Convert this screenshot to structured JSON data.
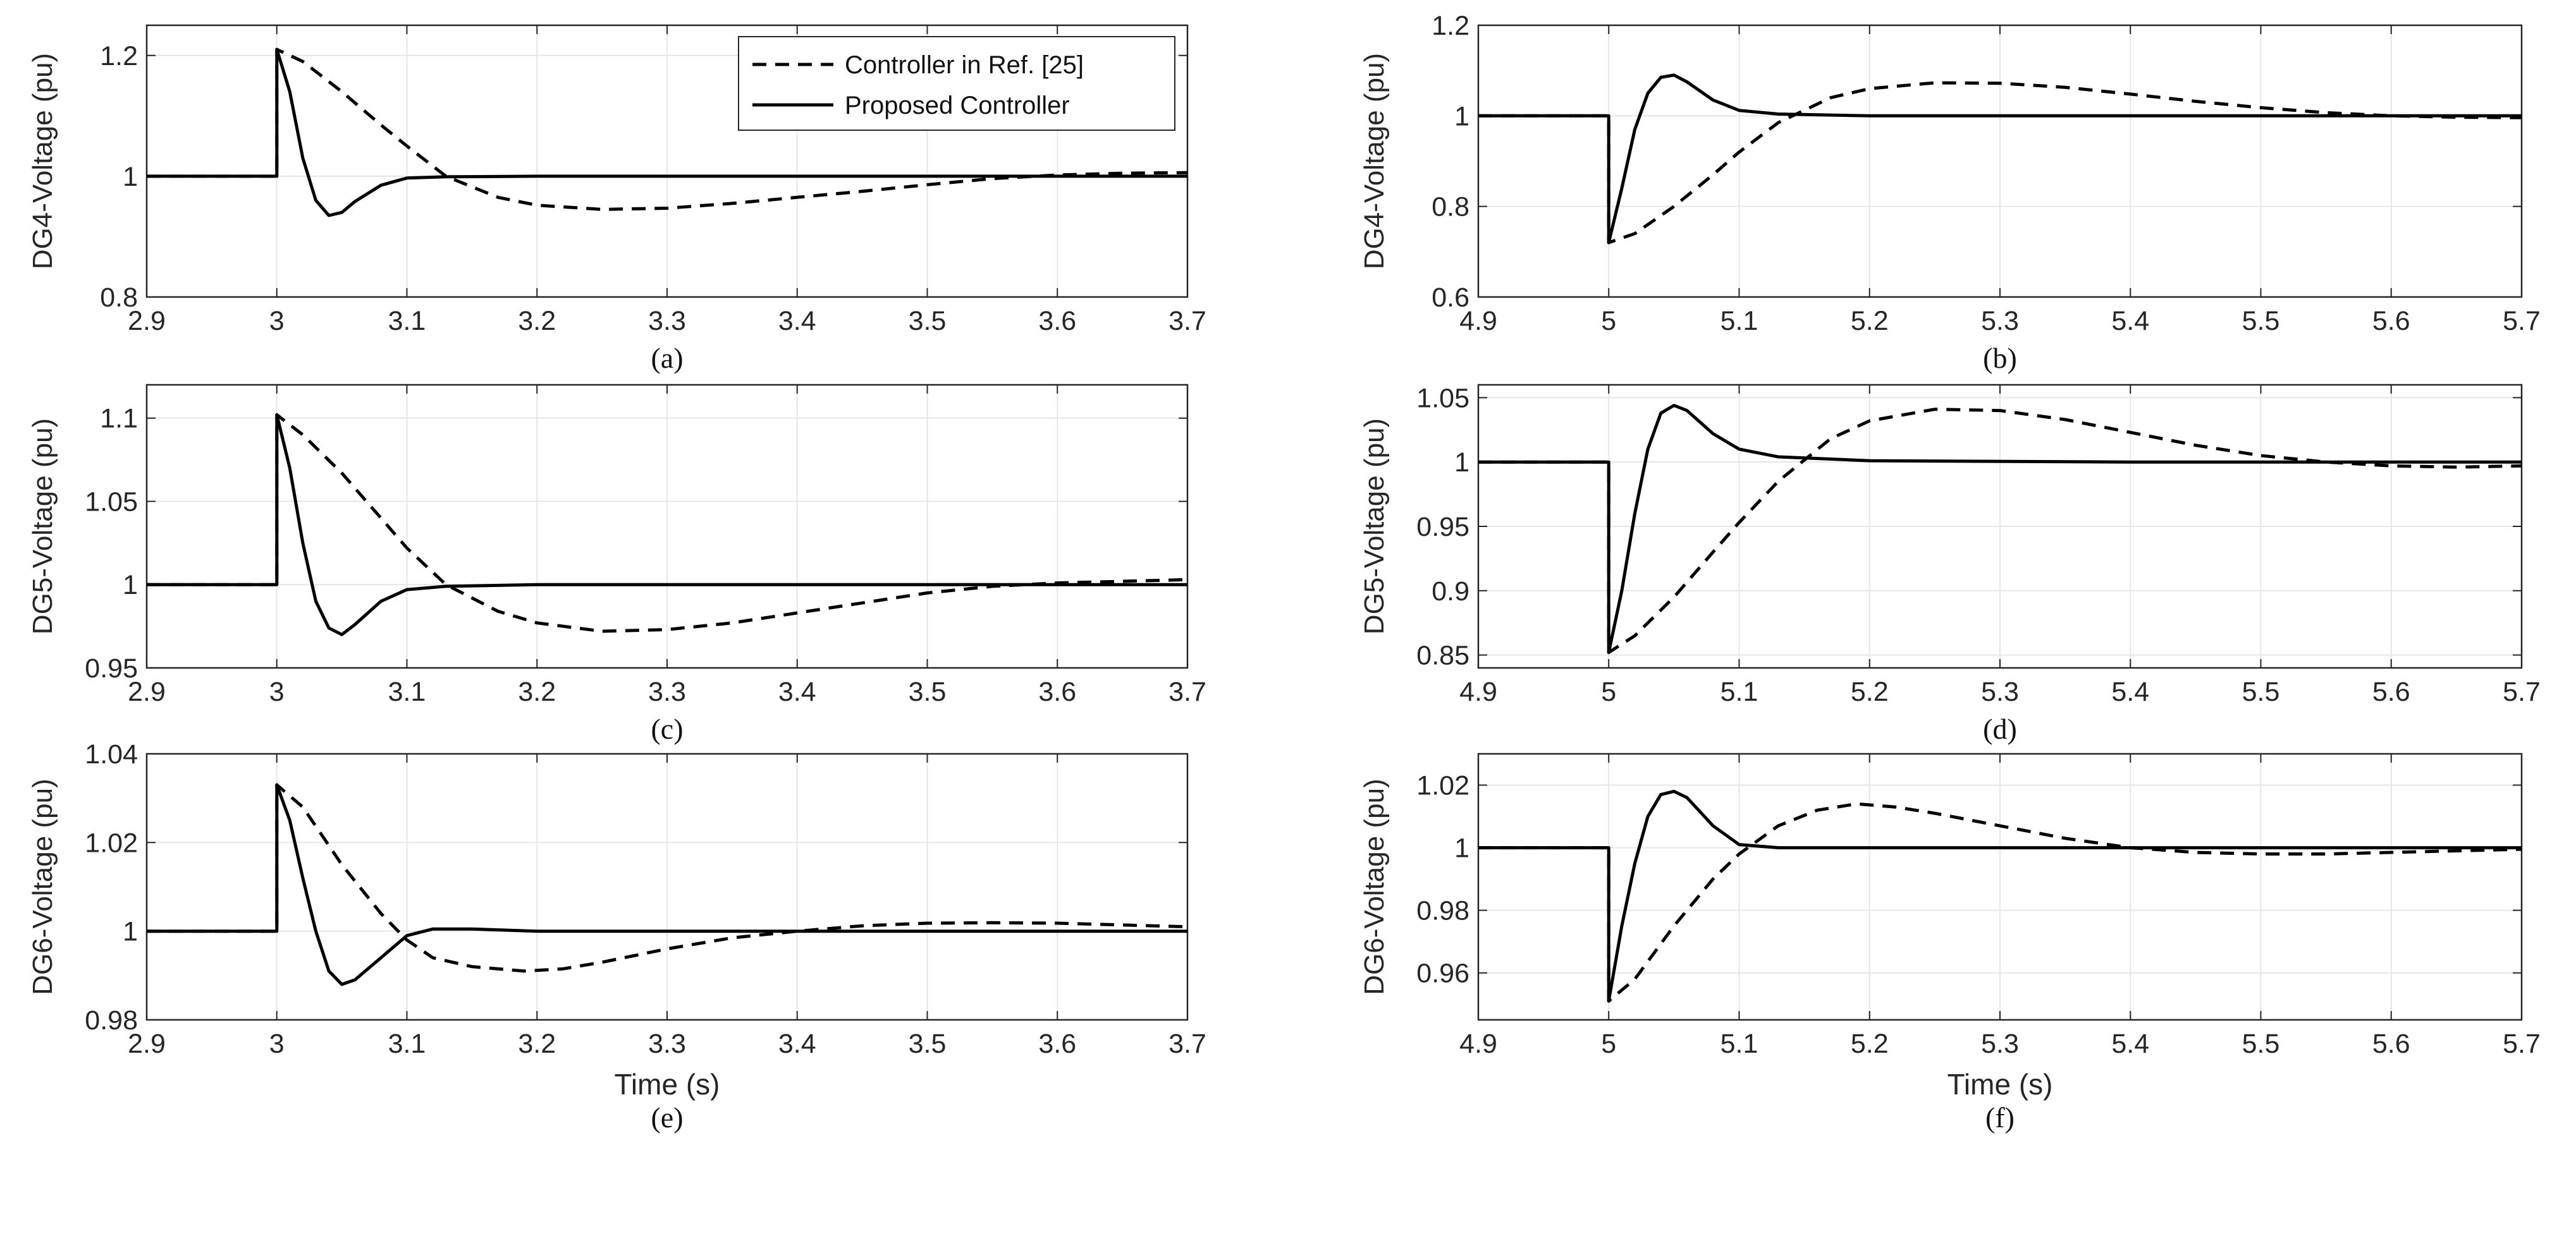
{
  "legend": {
    "dashed_label": "Controller in Ref. [25]",
    "solid_label": "Proposed Controller"
  },
  "colors": {
    "curve": "#000000",
    "grid": "#e6e6e6",
    "axis": "#262626"
  },
  "chart_data": [
    {
      "type": "line",
      "caption": "(a)",
      "ylabel": "DG4-Voltage (pu)",
      "xlabel": "",
      "xlim": [
        2.9,
        3.7
      ],
      "ylim": [
        0.8,
        1.25
      ],
      "xticks": [
        2.9,
        3.0,
        3.1,
        3.2,
        3.3,
        3.4,
        3.5,
        3.6,
        3.7
      ],
      "xtick_labels": [
        "2.9",
        "3",
        "3.1",
        "3.2",
        "3.3",
        "3.4",
        "3.5",
        "3.6",
        "3.7"
      ],
      "yticks": [
        0.8,
        1.0,
        1.2
      ],
      "ytick_labels": [
        "0.8",
        "1",
        "1.2"
      ],
      "grid": true,
      "legend_position": "top-right",
      "series": [
        {
          "name": "Controller in Ref. [25]",
          "style": "dashed",
          "x": [
            2.9,
            3.0,
            3.0,
            3.02,
            3.05,
            3.08,
            3.1,
            3.13,
            3.17,
            3.2,
            3.25,
            3.3,
            3.35,
            3.4,
            3.45,
            3.5,
            3.55,
            3.6,
            3.65,
            3.7
          ],
          "y": [
            1.0,
            1.0,
            1.21,
            1.19,
            1.14,
            1.085,
            1.05,
            1.0,
            0.965,
            0.952,
            0.945,
            0.947,
            0.955,
            0.965,
            0.975,
            0.986,
            0.996,
            1.002,
            1.005,
            1.006
          ]
        },
        {
          "name": "Proposed Controller",
          "style": "solid",
          "x": [
            2.9,
            3.0,
            3.0,
            3.01,
            3.02,
            3.03,
            3.04,
            3.05,
            3.06,
            3.08,
            3.1,
            3.13,
            3.2,
            3.4,
            3.7
          ],
          "y": [
            1.0,
            1.0,
            1.21,
            1.14,
            1.03,
            0.96,
            0.935,
            0.94,
            0.958,
            0.985,
            0.997,
            0.999,
            1.0,
            1.0,
            1.0
          ]
        }
      ]
    },
    {
      "type": "line",
      "caption": "(b)",
      "ylabel": "DG4-Voltage (pu)",
      "xlabel": "",
      "xlim": [
        4.9,
        5.7
      ],
      "ylim": [
        0.6,
        1.2
      ],
      "xticks": [
        4.9,
        5.0,
        5.1,
        5.2,
        5.3,
        5.4,
        5.5,
        5.6,
        5.7
      ],
      "xtick_labels": [
        "4.9",
        "5",
        "5.1",
        "5.2",
        "5.3",
        "5.4",
        "5.5",
        "5.6",
        "5.7"
      ],
      "yticks": [
        0.6,
        0.8,
        1.0,
        1.2
      ],
      "ytick_labels": [
        "0.6",
        "0.8",
        "1",
        "1.2"
      ],
      "grid": true,
      "series": [
        {
          "name": "Controller in Ref. [25]",
          "style": "dashed",
          "x": [
            4.9,
            5.0,
            5.0,
            5.02,
            5.05,
            5.08,
            5.1,
            5.13,
            5.17,
            5.2,
            5.25,
            5.3,
            5.35,
            5.4,
            5.45,
            5.5,
            5.55,
            5.6,
            5.65,
            5.7
          ],
          "y": [
            1.0,
            1.0,
            0.72,
            0.74,
            0.8,
            0.87,
            0.92,
            0.985,
            1.04,
            1.06,
            1.073,
            1.072,
            1.063,
            1.048,
            1.032,
            1.018,
            1.007,
            1.0,
            0.997,
            0.996
          ]
        },
        {
          "name": "Proposed Controller",
          "style": "solid",
          "x": [
            4.9,
            5.0,
            5.0,
            5.01,
            5.02,
            5.03,
            5.04,
            5.05,
            5.06,
            5.08,
            5.1,
            5.13,
            5.2,
            5.4,
            5.7
          ],
          "y": [
            1.0,
            1.0,
            0.72,
            0.84,
            0.97,
            1.05,
            1.085,
            1.09,
            1.075,
            1.035,
            1.012,
            1.004,
            1.0,
            1.0,
            1.0
          ]
        }
      ]
    },
    {
      "type": "line",
      "caption": "(c)",
      "ylabel": "DG5-Voltage (pu)",
      "xlabel": "",
      "xlim": [
        2.9,
        3.7
      ],
      "ylim": [
        0.95,
        1.12
      ],
      "xticks": [
        2.9,
        3.0,
        3.1,
        3.2,
        3.3,
        3.4,
        3.5,
        3.6,
        3.7
      ],
      "xtick_labels": [
        "2.9",
        "3",
        "3.1",
        "3.2",
        "3.3",
        "3.4",
        "3.5",
        "3.6",
        "3.7"
      ],
      "yticks": [
        0.95,
        1.0,
        1.05,
        1.1
      ],
      "ytick_labels": [
        "0.95",
        "1",
        "1.05",
        "1.1"
      ],
      "grid": true,
      "series": [
        {
          "name": "Controller in Ref. [25]",
          "style": "dashed",
          "x": [
            2.9,
            3.0,
            3.0,
            3.02,
            3.05,
            3.08,
            3.1,
            3.13,
            3.17,
            3.2,
            3.25,
            3.3,
            3.35,
            3.4,
            3.45,
            3.5,
            3.55,
            3.6,
            3.65,
            3.7
          ],
          "y": [
            1.0,
            1.0,
            1.102,
            1.09,
            1.067,
            1.04,
            1.022,
            1.0,
            0.984,
            0.977,
            0.972,
            0.973,
            0.977,
            0.983,
            0.989,
            0.995,
            0.999,
            1.001,
            1.002,
            1.003
          ]
        },
        {
          "name": "Proposed Controller",
          "style": "solid",
          "x": [
            2.9,
            3.0,
            3.0,
            3.01,
            3.02,
            3.03,
            3.04,
            3.05,
            3.06,
            3.08,
            3.1,
            3.13,
            3.2,
            3.4,
            3.7
          ],
          "y": [
            1.0,
            1.0,
            1.102,
            1.07,
            1.025,
            0.99,
            0.974,
            0.97,
            0.976,
            0.99,
            0.997,
            0.999,
            1.0,
            1.0,
            1.0
          ]
        }
      ]
    },
    {
      "type": "line",
      "caption": "(d)",
      "ylabel": "DG5-Voltage (pu)",
      "xlabel": "",
      "xlim": [
        4.9,
        5.7
      ],
      "ylim": [
        0.84,
        1.06
      ],
      "xticks": [
        4.9,
        5.0,
        5.1,
        5.2,
        5.3,
        5.4,
        5.5,
        5.6,
        5.7
      ],
      "xtick_labels": [
        "4.9",
        "5",
        "5.1",
        "5.2",
        "5.3",
        "5.4",
        "5.5",
        "5.6",
        "5.7"
      ],
      "yticks": [
        0.85,
        0.9,
        0.95,
        1.0,
        1.05
      ],
      "ytick_labels": [
        "0.85",
        "0.9",
        "0.95",
        "1",
        "1.05"
      ],
      "grid": true,
      "series": [
        {
          "name": "Controller in Ref. [25]",
          "style": "dashed",
          "x": [
            4.9,
            5.0,
            5.0,
            5.02,
            5.05,
            5.08,
            5.1,
            5.13,
            5.17,
            5.2,
            5.25,
            5.3,
            5.35,
            5.4,
            5.45,
            5.5,
            5.55,
            5.6,
            5.65,
            5.7
          ],
          "y": [
            1.0,
            1.0,
            0.852,
            0.865,
            0.895,
            0.93,
            0.953,
            0.985,
            1.018,
            1.032,
            1.041,
            1.04,
            1.033,
            1.023,
            1.013,
            1.005,
            1.0,
            0.997,
            0.996,
            0.997
          ]
        },
        {
          "name": "Proposed Controller",
          "style": "solid",
          "x": [
            4.9,
            5.0,
            5.0,
            5.01,
            5.02,
            5.03,
            5.04,
            5.05,
            5.06,
            5.08,
            5.1,
            5.13,
            5.2,
            5.4,
            5.7
          ],
          "y": [
            1.0,
            1.0,
            0.852,
            0.9,
            0.96,
            1.01,
            1.038,
            1.044,
            1.04,
            1.022,
            1.01,
            1.004,
            1.001,
            1.0,
            1.0
          ]
        }
      ]
    },
    {
      "type": "line",
      "caption": "(e)",
      "ylabel": "DG6-Voltage (pu)",
      "xlabel": "Time (s)",
      "xlim": [
        2.9,
        3.7
      ],
      "ylim": [
        0.98,
        1.04
      ],
      "xticks": [
        2.9,
        3.0,
        3.1,
        3.2,
        3.3,
        3.4,
        3.5,
        3.6,
        3.7
      ],
      "xtick_labels": [
        "2.9",
        "3",
        "3.1",
        "3.2",
        "3.3",
        "3.4",
        "3.5",
        "3.6",
        "3.7"
      ],
      "yticks": [
        0.98,
        1.0,
        1.02,
        1.04
      ],
      "ytick_labels": [
        "0.98",
        "1",
        "1.02",
        "1.04"
      ],
      "grid": true,
      "series": [
        {
          "name": "Controller in Ref. [25]",
          "style": "dashed",
          "x": [
            2.9,
            3.0,
            3.0,
            3.02,
            3.05,
            3.08,
            3.1,
            3.12,
            3.15,
            3.19,
            3.22,
            3.25,
            3.3,
            3.35,
            3.4,
            3.45,
            3.5,
            3.55,
            3.6,
            3.65,
            3.7
          ],
          "y": [
            1.0,
            1.0,
            1.033,
            1.028,
            1.015,
            1.004,
            0.998,
            0.994,
            0.992,
            0.991,
            0.9915,
            0.993,
            0.996,
            0.9985,
            1.0,
            1.0012,
            1.0018,
            1.0019,
            1.0018,
            1.0014,
            1.001
          ]
        },
        {
          "name": "Proposed Controller",
          "style": "solid",
          "x": [
            2.9,
            3.0,
            3.0,
            3.01,
            3.02,
            3.03,
            3.04,
            3.05,
            3.06,
            3.08,
            3.1,
            3.12,
            3.15,
            3.2,
            3.4,
            3.7
          ],
          "y": [
            1.0,
            1.0,
            1.033,
            1.025,
            1.012,
            1.0,
            0.991,
            0.988,
            0.989,
            0.994,
            0.999,
            1.0005,
            1.0005,
            1.0,
            1.0,
            1.0
          ]
        }
      ]
    },
    {
      "type": "line",
      "caption": "(f)",
      "ylabel": "DG6-Voltage (pu)",
      "xlabel": "Time (s)",
      "xlim": [
        4.9,
        5.7
      ],
      "ylim": [
        0.945,
        1.03
      ],
      "xticks": [
        4.9,
        5.0,
        5.1,
        5.2,
        5.3,
        5.4,
        5.5,
        5.6,
        5.7
      ],
      "xtick_labels": [
        "4.9",
        "5",
        "5.1",
        "5.2",
        "5.3",
        "5.4",
        "5.5",
        "5.6",
        "5.7"
      ],
      "yticks": [
        0.96,
        0.98,
        1.0,
        1.02
      ],
      "ytick_labels": [
        "0.96",
        "0.98",
        "1",
        "1.02"
      ],
      "grid": true,
      "series": [
        {
          "name": "Controller in Ref. [25]",
          "style": "dashed",
          "x": [
            4.9,
            5.0,
            5.0,
            5.02,
            5.05,
            5.08,
            5.1,
            5.13,
            5.16,
            5.19,
            5.22,
            5.25,
            5.3,
            5.35,
            5.4,
            5.45,
            5.5,
            5.55,
            5.6,
            5.65,
            5.7
          ],
          "y": [
            1.0,
            1.0,
            0.951,
            0.958,
            0.975,
            0.99,
            0.998,
            1.007,
            1.012,
            1.014,
            1.013,
            1.011,
            1.007,
            1.003,
            1.0,
            0.9985,
            0.998,
            0.998,
            0.9985,
            0.999,
            0.9995
          ]
        },
        {
          "name": "Proposed Controller",
          "style": "solid",
          "x": [
            4.9,
            5.0,
            5.0,
            5.01,
            5.02,
            5.03,
            5.04,
            5.05,
            5.06,
            5.08,
            5.1,
            5.13,
            5.2,
            5.4,
            5.7
          ],
          "y": [
            1.0,
            1.0,
            0.951,
            0.975,
            0.995,
            1.01,
            1.017,
            1.018,
            1.016,
            1.007,
            1.001,
            1.0,
            1.0,
            1.0,
            1.0
          ]
        }
      ]
    }
  ]
}
